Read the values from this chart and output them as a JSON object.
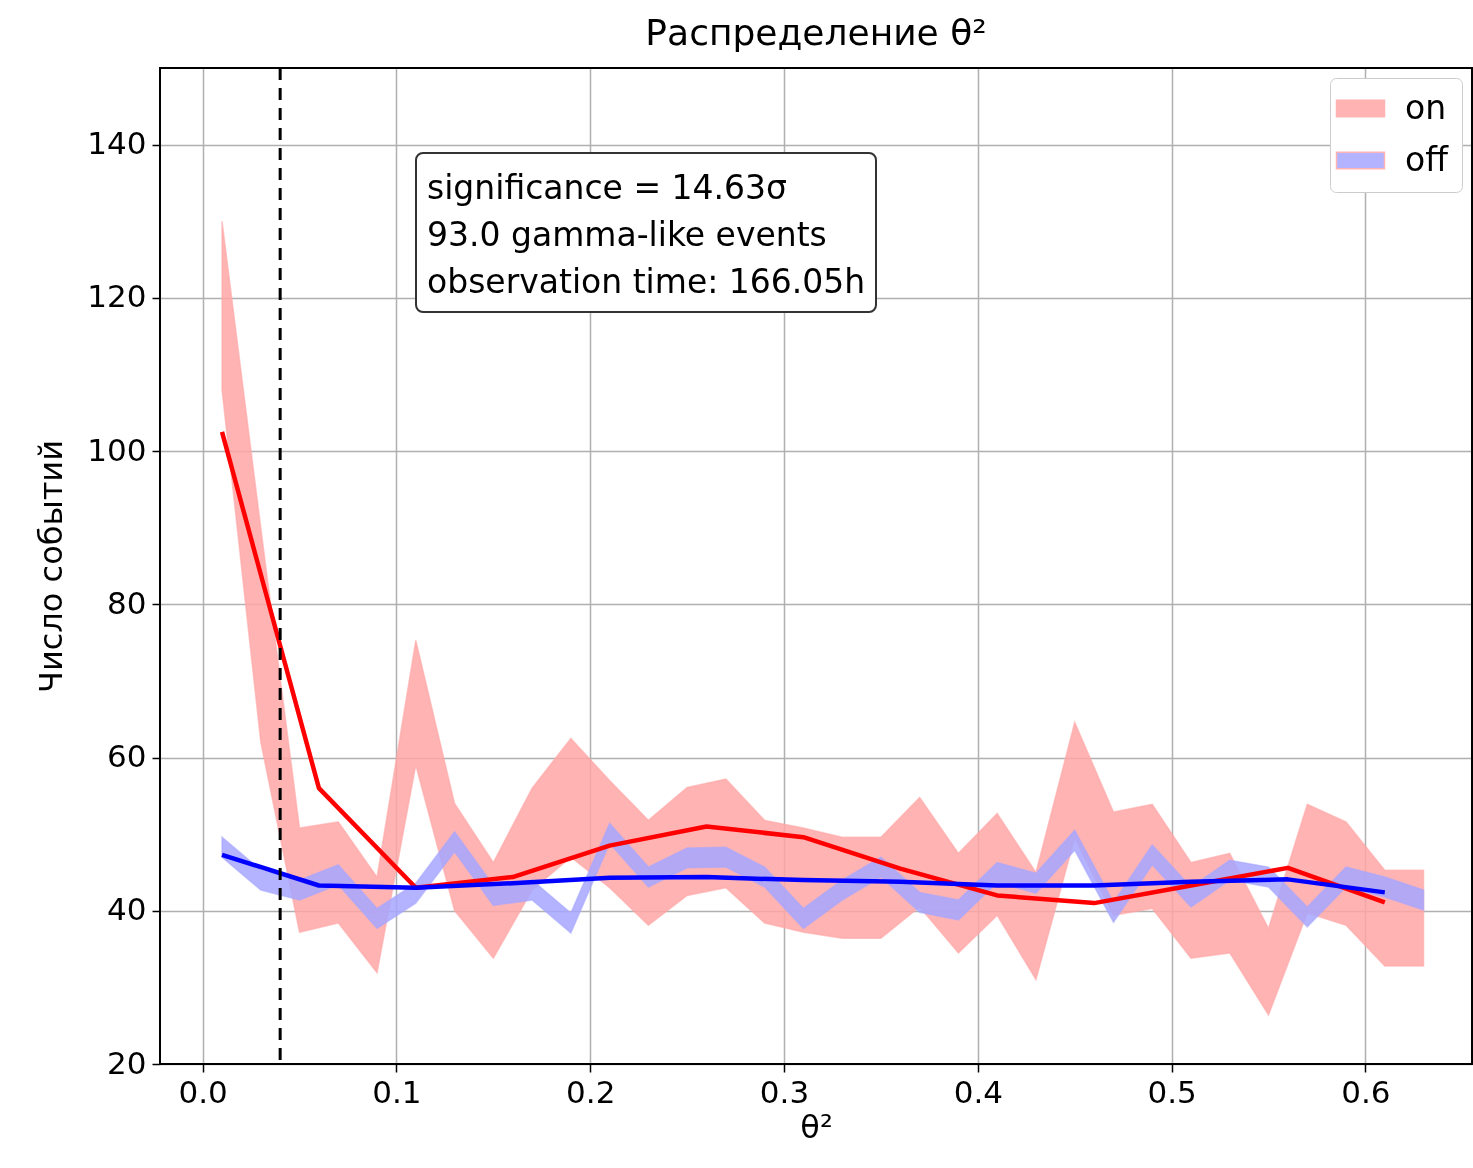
{
  "chart_data": {
    "type": "line",
    "title": "Распределение θ²",
    "xlabel": "θ²",
    "ylabel": "Число событий",
    "xlim": [
      -0.022,
      0.655
    ],
    "ylim": [
      20,
      150
    ],
    "xticks": [
      {
        "value": 0,
        "label": "0.0"
      },
      0.1,
      0.2,
      0.3,
      0.4,
      0.5,
      0.6
    ],
    "yticks": [
      20,
      40,
      60,
      80,
      100,
      120,
      140
    ],
    "grid": true,
    "legend": "top right",
    "annotations": [
      "significance = 14.63σ",
      "93.0 gamma-like events",
      "observation time: 166.05h"
    ],
    "ref_lines": [
      {
        "axis": "x",
        "value": 0.04,
        "color": "#000000",
        "line_style": "dashed"
      }
    ],
    "series": [
      {
        "name": "on",
        "color": "#ffa6a6",
        "x": [
          0.01,
          0.03,
          0.05,
          0.07,
          0.09,
          0.11,
          0.13,
          0.15,
          0.17,
          0.19,
          0.21,
          0.23,
          0.25,
          0.27,
          0.29,
          0.31,
          0.33,
          0.35,
          0.37,
          0.39,
          0.41,
          0.43,
          0.45,
          0.47,
          0.49,
          0.51,
          0.53,
          0.55,
          0.57,
          0.59,
          0.61,
          0.63
        ],
        "values": [
          null,
          null,
          null,
          null,
          null,
          null,
          null,
          null,
          null,
          null,
          null,
          null,
          null,
          null,
          null,
          null,
          null,
          null,
          null,
          null,
          null,
          null,
          null,
          null,
          null,
          null,
          null,
          null,
          null,
          null,
          null,
          null
        ],
        "upper": [
          130,
          90,
          50.8,
          51.6,
          44.4,
          75.3,
          54,
          46.3,
          56,
          62.5,
          57,
          51.8,
          56.1,
          57.2,
          51.8,
          50.8,
          49.6,
          49.6,
          54.8,
          47.5,
          52.7,
          45,
          64.6,
          52.9,
          53.9,
          46.3,
          47.5,
          37.7,
          53.9,
          51.6,
          45.3,
          45.3
        ],
        "lower": [
          108,
          62,
          37.2,
          38.4,
          31.9,
          59,
          40,
          33.8,
          42.7,
          47,
          43,
          38.1,
          42,
          43,
          38.4,
          37.2,
          36.4,
          36.4,
          40.5,
          34.5,
          39.4,
          31,
          49.5,
          39.4,
          40.3,
          33.8,
          34.5,
          26.4,
          39.7,
          38.1,
          32.8,
          32.8
        ]
      },
      {
        "name": "off",
        "color": "#a6a6ff",
        "x": [
          0.01,
          0.03,
          0.05,
          0.07,
          0.09,
          0.11,
          0.13,
          0.15,
          0.17,
          0.19,
          0.21,
          0.23,
          0.25,
          0.27,
          0.29,
          0.31,
          0.33,
          0.35,
          0.37,
          0.39,
          0.41,
          0.43,
          0.45,
          0.47,
          0.49,
          0.51,
          0.53,
          0.55,
          0.57,
          0.59,
          0.61,
          0.63
        ],
        "values": [
          null,
          null,
          null,
          null,
          null,
          null,
          null,
          null,
          null,
          null,
          null,
          null,
          null,
          null,
          null,
          null,
          null,
          null,
          null,
          null,
          null,
          null,
          null,
          null,
          null,
          null,
          null,
          null,
          null,
          null,
          null,
          null
        ],
        "upper": [
          49.6,
          45.3,
          44,
          46,
          40.3,
          43.6,
          50.3,
          43.3,
          44,
          39.7,
          51.4,
          45.7,
          48.2,
          48.3,
          45.7,
          40.3,
          44,
          47,
          42.4,
          41.4,
          46.3,
          44.9,
          50.5,
          41.1,
          48.6,
          43.1,
          46.6,
          45.7,
          40.5,
          45.7,
          44.4,
          42.7
        ],
        "lower": [
          47,
          42.7,
          41.4,
          43.4,
          37.7,
          41,
          47.7,
          40.7,
          41.4,
          37.1,
          48.8,
          43.1,
          45.6,
          45.7,
          43.1,
          37.7,
          41.4,
          44.4,
          39.8,
          38.8,
          43.7,
          42.3,
          47.9,
          38.5,
          46,
          40.5,
          44,
          43.1,
          37.9,
          43.1,
          41.8,
          40.1
        ]
      },
      {
        "color": "#ff0000",
        "x": [
          0.01,
          0.06,
          0.11,
          0.16,
          0.21,
          0.26,
          0.31,
          0.36,
          0.41,
          0.46,
          0.51,
          0.56,
          0.61
        ],
        "values": [
          102.5,
          56,
          43,
          44.4,
          48.5,
          51,
          49.6,
          45.5,
          42,
          41,
          43.3,
          45.6,
          41.1
        ]
      },
      {
        "color": "#0000ff",
        "x": [
          0.01,
          0.06,
          0.11,
          0.16,
          0.21,
          0.26,
          0.31,
          0.36,
          0.41,
          0.46,
          0.51,
          0.56,
          0.61
        ],
        "values": [
          47.3,
          43.3,
          43,
          43.6,
          44.3,
          44.4,
          44,
          43.8,
          43.3,
          43.3,
          43.8,
          44.1,
          42.4
        ]
      }
    ]
  }
}
